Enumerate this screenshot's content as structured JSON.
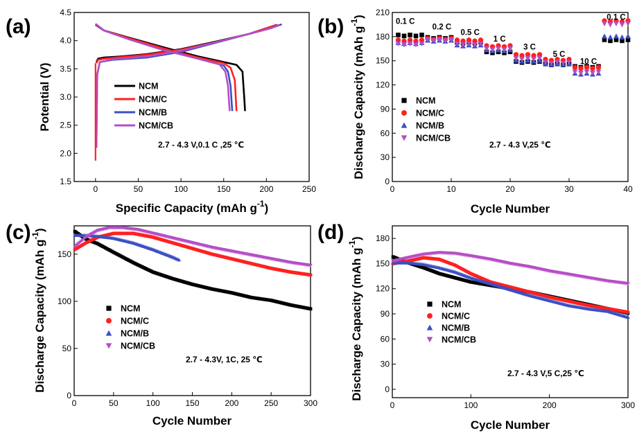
{
  "colors": {
    "NCM": "#000000",
    "NCM/C": "#ff2020",
    "NCM/B": "#3a4fc4",
    "NCM/CB": "#b54ec4"
  },
  "chart_data": [
    {
      "panel": "(a)",
      "type": "line",
      "xlabel": "Specific Capacity (mAh g",
      "xlabel_sup": "-1",
      "xlabel_end": ")",
      "ylabel": "Potential (V)",
      "xlim": [
        -25,
        250
      ],
      "ylim": [
        1.5,
        4.5
      ],
      "xticks": [
        0,
        50,
        100,
        150,
        200,
        250
      ],
      "yticks": [
        1.5,
        2.0,
        2.5,
        3.0,
        3.5,
        4.0,
        4.5
      ],
      "annotation": "2.7 - 4.3 V,0.1 C ,25 ℃",
      "legend": [
        "NCM",
        "NCM/C",
        "NCM/B",
        "NCM/CB"
      ],
      "series": [
        {
          "name": "NCM",
          "charge": [
            [
              1,
              3.62
            ],
            [
              3,
              3.68
            ],
            [
              10,
              3.7
            ],
            [
              30,
              3.72
            ],
            [
              60,
              3.76
            ],
            [
              100,
              3.85
            ],
            [
              140,
              3.98
            ],
            [
              180,
              4.12
            ],
            [
              200,
              4.22
            ],
            [
              212,
              4.28
            ]
          ],
          "discharge": [
            [
              0,
              4.28
            ],
            [
              10,
              4.18
            ],
            [
              40,
              4.05
            ],
            [
              80,
              3.88
            ],
            [
              120,
              3.72
            ],
            [
              150,
              3.62
            ],
            [
              165,
              3.57
            ],
            [
              172,
              3.45
            ],
            [
              174,
              3.0
            ],
            [
              175,
              2.75
            ]
          ]
        },
        {
          "name": "NCM/C",
          "charge": [
            [
              1,
              3.6
            ],
            [
              3,
              3.66
            ],
            [
              10,
              3.68
            ],
            [
              30,
              3.71
            ],
            [
              60,
              3.75
            ],
            [
              100,
              3.84
            ],
            [
              140,
              3.97
            ],
            [
              180,
              4.12
            ],
            [
              200,
              4.22
            ],
            [
              213,
              4.28
            ]
          ],
          "discharge": [
            [
              0,
              4.28
            ],
            [
              10,
              4.18
            ],
            [
              40,
              4.04
            ],
            [
              80,
              3.86
            ],
            [
              120,
              3.7
            ],
            [
              150,
              3.6
            ],
            [
              158,
              3.52
            ],
            [
              163,
              3.3
            ],
            [
              165,
              2.75
            ]
          ]
        },
        {
          "name": "NCM/B",
          "charge": [
            [
              1,
              2.1
            ],
            [
              2,
              3.4
            ],
            [
              5,
              3.62
            ],
            [
              20,
              3.66
            ],
            [
              60,
              3.7
            ],
            [
              100,
              3.8
            ],
            [
              140,
              3.96
            ],
            [
              180,
              4.12
            ],
            [
              205,
              4.22
            ],
            [
              218,
              4.29
            ]
          ],
          "discharge": [
            [
              0,
              4.29
            ],
            [
              10,
              4.18
            ],
            [
              40,
              4.02
            ],
            [
              80,
              3.83
            ],
            [
              120,
              3.68
            ],
            [
              150,
              3.56
            ],
            [
              155,
              3.45
            ],
            [
              158,
              3.2
            ],
            [
              160,
              2.75
            ]
          ]
        },
        {
          "name": "NCM/CB",
          "charge": [
            [
              1,
              2.1
            ],
            [
              2,
              3.4
            ],
            [
              5,
              3.62
            ],
            [
              20,
              3.67
            ],
            [
              60,
              3.72
            ],
            [
              100,
              3.82
            ],
            [
              140,
              3.97
            ],
            [
              180,
              4.12
            ],
            [
              205,
              4.22
            ],
            [
              215,
              4.28
            ]
          ],
          "discharge": [
            [
              0,
              4.3
            ],
            [
              10,
              4.18
            ],
            [
              40,
              4.02
            ],
            [
              80,
              3.83
            ],
            [
              120,
              3.68
            ],
            [
              145,
              3.58
            ],
            [
              152,
              3.45
            ],
            [
              155,
              3.2
            ],
            [
              157,
              2.75
            ]
          ]
        }
      ],
      "start_drop": [
        [
          0,
          3.6
        ],
        [
          0,
          2.7
        ],
        [
          0,
          1.87
        ]
      ]
    },
    {
      "panel": "(b)",
      "type": "scatter",
      "xlabel": "Cycle Number",
      "ylabel": "Discharge Capacity (mAh g",
      "ylabel_sup": "-1",
      "ylabel_end": ")",
      "xlim": [
        0,
        40
      ],
      "ylim": [
        0,
        210
      ],
      "xticks": [
        0,
        10,
        20,
        30,
        40
      ],
      "yticks": [
        0,
        30,
        60,
        90,
        120,
        150,
        180,
        210
      ],
      "annotation": "2.7 - 4.3 V,25 ℃",
      "legend": [
        "NCM",
        "NCM/C",
        "NCM/B",
        "NCM/CB"
      ],
      "rate_labels": [
        {
          "text": "0.1 C",
          "x": 2.2,
          "y": 196
        },
        {
          "text": "0.2 C",
          "x": 8.4,
          "y": 189
        },
        {
          "text": "0.5 C",
          "x": 13.2,
          "y": 182
        },
        {
          "text": "1 C",
          "x": 18.2,
          "y": 174
        },
        {
          "text": "3 C",
          "x": 23.3,
          "y": 164
        },
        {
          "text": "5 C",
          "x": 28.3,
          "y": 155
        },
        {
          "text": "10 C",
          "x": 33.3,
          "y": 146
        },
        {
          "text": "0.1 C",
          "x": 38,
          "y": 201
        }
      ],
      "segments": [
        {
          "start": 1,
          "end": 5,
          "values": {
            "NCM": 181,
            "NCM/C": 175,
            "NCM/B": 172,
            "NCM/CB": 171
          }
        },
        {
          "start": 6,
          "end": 10,
          "values": {
            "NCM": 178,
            "NCM/C": 177,
            "NCM/B": 175,
            "NCM/CB": 176
          }
        },
        {
          "start": 11,
          "end": 15,
          "values": {
            "NCM": 172,
            "NCM/C": 175,
            "NCM/B": 169,
            "NCM/CB": 171
          }
        },
        {
          "start": 16,
          "end": 20,
          "values": {
            "NCM": 160,
            "NCM/C": 168,
            "NCM/B": 163,
            "NCM/CB": 165
          }
        },
        {
          "start": 21,
          "end": 25,
          "values": {
            "NCM": 148,
            "NCM/C": 157,
            "NCM/B": 150,
            "NCM/CB": 153
          }
        },
        {
          "start": 26,
          "end": 30,
          "values": {
            "NCM": 145,
            "NCM/C": 151,
            "NCM/B": 146,
            "NCM/CB": 148
          }
        },
        {
          "start": 31,
          "end": 35,
          "values": {
            "NCM": 142,
            "NCM/C": 141,
            "NCM/B": 134,
            "NCM/CB": 136
          }
        },
        {
          "start": 36,
          "end": 40,
          "values": {
            "NCM": 175,
            "NCM/C": 199,
            "NCM/B": 180,
            "NCM/CB": 196
          }
        }
      ]
    },
    {
      "panel": "(c)",
      "type": "scatter",
      "xlabel": "Cycle Number",
      "ylabel": "Discharge Capacity (mAh g",
      "ylabel_sup": "-1",
      "ylabel_end": ")",
      "xlim": [
        0,
        300
      ],
      "ylim": [
        0,
        180
      ],
      "xticks": [
        0,
        50,
        100,
        150,
        200,
        250,
        300
      ],
      "yticks": [
        0,
        50,
        100,
        150
      ],
      "annotation": "2.7 - 4.3V, 1C, 25 ℃",
      "legend": [
        "NCM",
        "NCM/C",
        "NCM/B",
        "NCM/CB"
      ],
      "series": [
        {
          "name": "NCM",
          "x": [
            1,
            15,
            30,
            50,
            75,
            100,
            125,
            150,
            175,
            200,
            225,
            250,
            275,
            300
          ],
          "y": [
            174,
            166,
            161,
            152,
            141,
            131,
            124,
            118,
            113,
            109,
            104,
            101,
            96,
            92
          ]
        },
        {
          "name": "NCM/C",
          "x": [
            1,
            15,
            30,
            50,
            75,
            100,
            125,
            150,
            175,
            200,
            225,
            250,
            275,
            300
          ],
          "y": [
            155,
            162,
            168,
            172,
            172,
            168,
            162,
            156,
            150,
            145,
            140,
            135,
            131,
            128
          ]
        },
        {
          "name": "NCM/B",
          "x": [
            1,
            15,
            30,
            50,
            75,
            100,
            125,
            133
          ],
          "y": [
            170,
            170,
            169,
            167,
            162,
            155,
            147,
            144
          ]
        },
        {
          "name": "NCM/CB",
          "x": [
            1,
            15,
            30,
            45,
            60,
            80,
            100,
            125,
            150,
            175,
            200,
            225,
            250,
            275,
            300
          ],
          "y": [
            158,
            168,
            175,
            178,
            178,
            176,
            172,
            167,
            162,
            157,
            153,
            149,
            145,
            141,
            138
          ]
        }
      ]
    },
    {
      "panel": "(d)",
      "type": "scatter",
      "xlabel": "Cycle Number",
      "ylabel": "Discharge Capacity (mAh g",
      "ylabel_sup": "-1",
      "ylabel_end": ")",
      "xlim": [
        0,
        300
      ],
      "ylim": [
        -10,
        195
      ],
      "xticks": [
        0,
        100,
        200,
        300
      ],
      "yticks": [
        0,
        30,
        60,
        90,
        120,
        150,
        180
      ],
      "annotation": "2.7 - 4.3 V,5 C,25 ℃",
      "legend": [
        "NCM",
        "NCM/C",
        "NCM/B",
        "NCM/CB"
      ],
      "series": [
        {
          "name": "NCM",
          "x": [
            1,
            20,
            40,
            60,
            80,
            100,
            125,
            150,
            175,
            200,
            225,
            250,
            275,
            300
          ],
          "y": [
            158,
            151,
            145,
            138,
            133,
            128,
            124,
            120,
            116,
            111,
            106,
            101,
            96,
            91
          ]
        },
        {
          "name": "NCM/C",
          "x": [
            1,
            20,
            40,
            60,
            80,
            100,
            125,
            150,
            175,
            200,
            225,
            250,
            275,
            300
          ],
          "y": [
            150,
            153,
            157,
            155,
            148,
            138,
            128,
            122,
            116,
            110,
            105,
            100,
            96,
            92
          ]
        },
        {
          "name": "NCM/B",
          "x": [
            1,
            20,
            40,
            60,
            80,
            100,
            125,
            150,
            175,
            200,
            225,
            250,
            275,
            300
          ],
          "y": [
            151,
            151,
            149,
            145,
            140,
            133,
            126,
            119,
            112,
            106,
            100,
            96,
            93,
            86
          ]
        },
        {
          "name": "NCM/CB",
          "x": [
            1,
            20,
            40,
            60,
            80,
            100,
            125,
            150,
            175,
            200,
            225,
            250,
            275,
            300
          ],
          "y": [
            153,
            157,
            161,
            163,
            162,
            159,
            155,
            150,
            146,
            141,
            137,
            133,
            129,
            126
          ]
        }
      ]
    }
  ]
}
